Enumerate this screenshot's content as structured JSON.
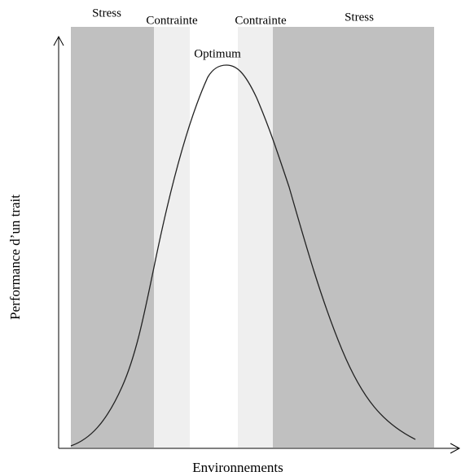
{
  "zones": [
    {
      "label": "Stress"
    },
    {
      "label": "Contrainte"
    },
    {
      "label": "Optimum"
    },
    {
      "label": "Contrainte"
    },
    {
      "label": "Stress"
    }
  ],
  "x_axis_label": "Environnements",
  "y_axis_label": "Performance d’un trait"
}
